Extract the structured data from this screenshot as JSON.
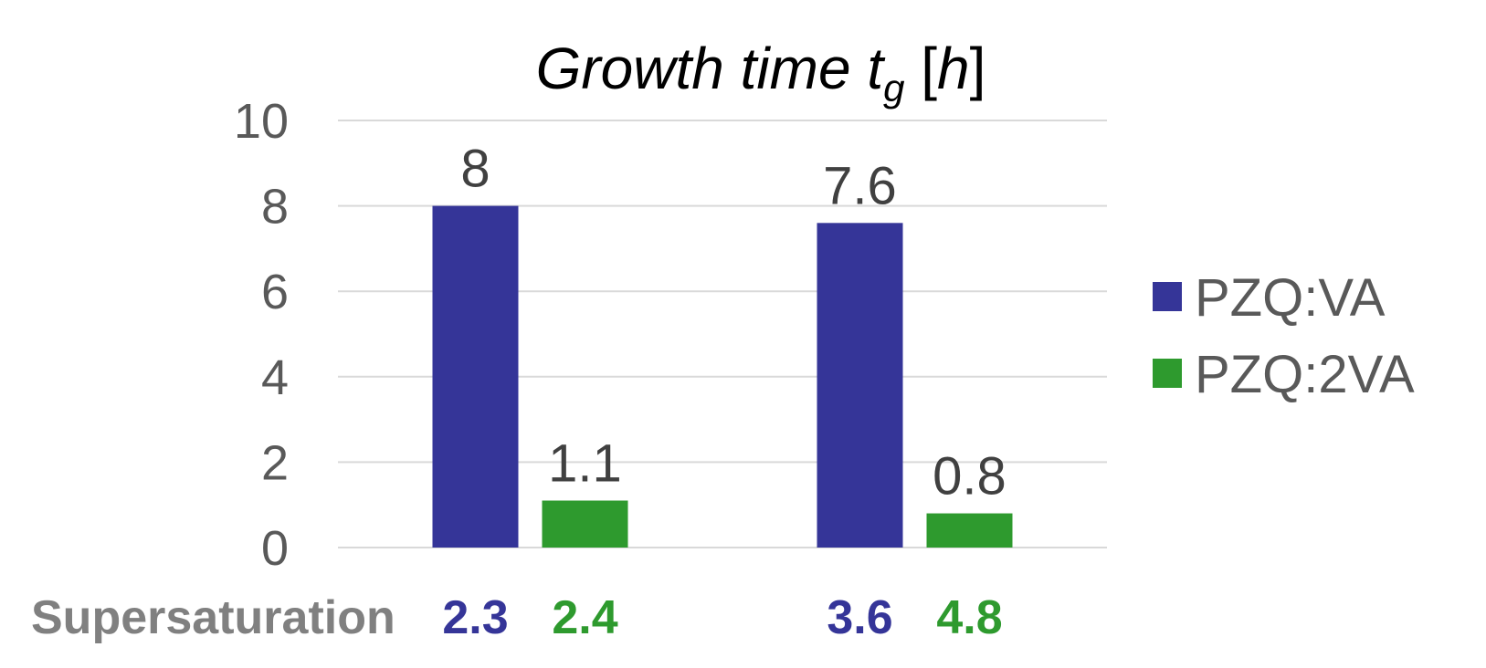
{
  "chart_data": {
    "type": "bar",
    "title": {
      "main": "Growth time t",
      "subscript": "g",
      "bracket_open": " [",
      "unit": "h",
      "bracket_close": "]"
    },
    "categories": [
      "",
      ""
    ],
    "ylim": [
      0,
      10
    ],
    "yticks": [
      0,
      2,
      4,
      6,
      8,
      10
    ],
    "grid": true,
    "legend_position": "right",
    "series": [
      {
        "name": "PZQ:VA",
        "color": "#353598",
        "values": [
          8,
          7.6
        ],
        "labels": [
          "8",
          "7.6"
        ]
      },
      {
        "name": "PZQ:2VA",
        "color": "#2e9a2e",
        "values": [
          1.1,
          0.8
        ],
        "labels": [
          "1.1",
          "0.8"
        ]
      }
    ],
    "supersaturation": {
      "label": "Supersaturation",
      "values": [
        {
          "text": "2.3",
          "series": 0,
          "category": 0
        },
        {
          "text": "2.4",
          "series": 1,
          "category": 0
        },
        {
          "text": "3.6",
          "series": 0,
          "category": 1
        },
        {
          "text": "4.8",
          "series": 1,
          "category": 1
        }
      ]
    }
  }
}
